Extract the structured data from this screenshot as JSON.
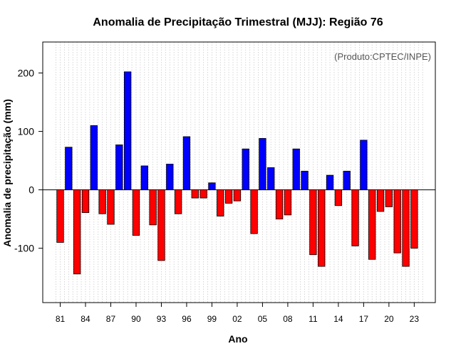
{
  "chart_data": {
    "type": "bar",
    "title": "Anomalia de Precipitação Trimestral (MJJ): Região 76",
    "xlabel": "Ano",
    "ylabel": "Anomalia de precipitação (mm)",
    "credit": "(Produto:CPTEC/INPE)",
    "ylim": [
      -193,
      253
    ],
    "y_ticks": [
      -100,
      0,
      100,
      200
    ],
    "y_tick_labels": [
      "-100",
      "0",
      "100",
      "200"
    ],
    "categories": [
      "1981",
      "1982",
      "1983",
      "1984",
      "1985",
      "1986",
      "1987",
      "1988",
      "1989",
      "1990",
      "1991",
      "1992",
      "1993",
      "1994",
      "1995",
      "1996",
      "1997",
      "1998",
      "1999",
      "2000",
      "2001",
      "2002",
      "2003",
      "2004",
      "2005",
      "2006",
      "2007",
      "2008",
      "2009",
      "2010",
      "2011",
      "2012",
      "2013",
      "2014",
      "2015",
      "2016",
      "2017",
      "2018",
      "2019",
      "2020",
      "2021",
      "2022",
      "2023"
    ],
    "values": [
      -90,
      73,
      -144,
      -39,
      110,
      -41,
      -59,
      77,
      202,
      -78,
      41,
      -60,
      -121,
      44,
      -41,
      91,
      -14,
      -14,
      12,
      -45,
      -23,
      -19,
      70,
      -75,
      88,
      38,
      -50,
      -43,
      70,
      32,
      -111,
      -131,
      25,
      -27,
      32,
      -96,
      85,
      -119,
      -37,
      -29,
      -108,
      -131,
      -100
    ],
    "x_tick_labels": [
      {
        "index": 0,
        "label": "81"
      },
      {
        "index": 3,
        "label": "84"
      },
      {
        "index": 6,
        "label": "87"
      },
      {
        "index": 9,
        "label": "90"
      },
      {
        "index": 12,
        "label": "93"
      },
      {
        "index": 15,
        "label": "96"
      },
      {
        "index": 18,
        "label": "99"
      },
      {
        "index": 21,
        "label": "02"
      },
      {
        "index": 24,
        "label": "05"
      },
      {
        "index": 27,
        "label": "08"
      },
      {
        "index": 30,
        "label": "11"
      },
      {
        "index": 33,
        "label": "14"
      },
      {
        "index": 36,
        "label": "17"
      },
      {
        "index": 39,
        "label": "20"
      },
      {
        "index": 42,
        "label": "23"
      }
    ],
    "colors": {
      "positive": "#0000ff",
      "negative": "#ff0000",
      "grid": "#cccccc",
      "zero_line": "#000000"
    },
    "grid": "vertical-dotted",
    "legend": "none"
  }
}
